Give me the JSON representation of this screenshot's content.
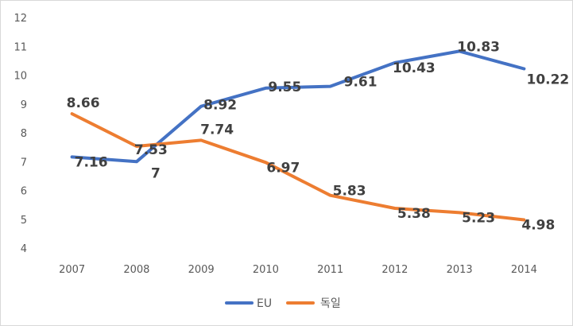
{
  "chart_data": {
    "type": "line",
    "title": "",
    "xlabel": "",
    "ylabel": "",
    "categories": [
      "2007",
      "2008",
      "2009",
      "2010",
      "2011",
      "2012",
      "2013",
      "2014"
    ],
    "ylim": [
      4,
      12
    ],
    "yticks": [
      "4",
      "5",
      "6",
      "7",
      "8",
      "9",
      "10",
      "11",
      "12"
    ],
    "grid": false,
    "legend_position": "bottom",
    "series": [
      {
        "name": "EU",
        "color": "#4472C4",
        "values": [
          7.16,
          7,
          8.92,
          9.55,
          9.61,
          10.43,
          10.83,
          10.22
        ],
        "labels": [
          "7.16",
          "7",
          "8.92",
          "9.55",
          "9.61",
          "10.43",
          "10.83",
          "10.22"
        ]
      },
      {
        "name": "독일",
        "color": "#ED7D31",
        "values": [
          8.66,
          7.53,
          7.74,
          6.97,
          5.83,
          5.38,
          5.23,
          4.98
        ],
        "labels": [
          "8.66",
          "7.53",
          "7.74",
          "6.97",
          "5.83",
          "5.38",
          "5.23",
          "4.98"
        ]
      }
    ]
  }
}
